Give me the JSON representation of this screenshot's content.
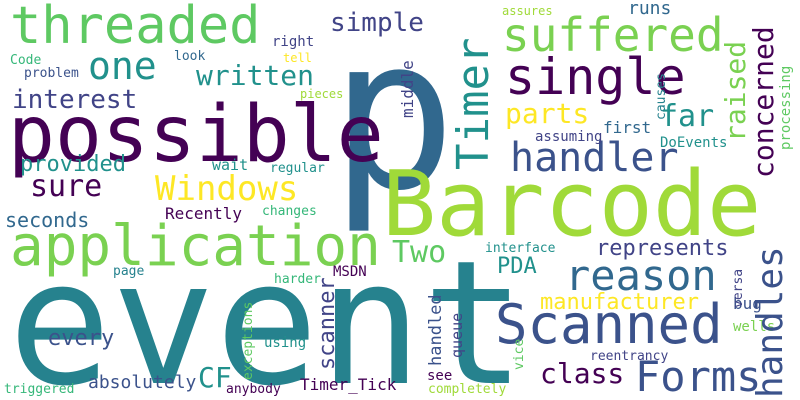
{
  "palette": {
    "dark_purple": "#440154",
    "indigo": "#3b528b",
    "deep_indigo": "#414487",
    "blue": "#31688e",
    "teal": "#21918c",
    "teal_blue": "#26828e",
    "green": "#35b779",
    "light_green": "#5ec962",
    "lime": "#7ad151",
    "yellow_green": "#a0da39",
    "yellow": "#fde725"
  },
  "words": {
    "p": "p",
    "event": "event",
    "barcode": "Barcode",
    "possible": "possible",
    "application": "application",
    "threaded": "threaded",
    "single": "single",
    "scanned": "Scanned",
    "timer": "Timer",
    "suffered": "suffered",
    "handler": "handler",
    "reason": "reason",
    "forms": "Forms",
    "windows": "Windows",
    "one": "one",
    "handles": "handles",
    "written": "written",
    "interest": "interest",
    "sure": "sure",
    "concerned": "concerned",
    "raised": "raised",
    "simple": "simple",
    "parts": "parts",
    "far": "far",
    "two": "Two",
    "class": "class",
    "scanner": "scanner",
    "provided": "provided",
    "represents": "represents",
    "manufacturer": "manufacturer",
    "every": "every",
    "seconds": "seconds",
    "pda": "PDA",
    "handled": "handled",
    "cf": "CF",
    "absolutely": "absolutely",
    "queue": "queue",
    "recently": "Recently",
    "bug": "bug",
    "wells": "wells",
    "timer_tick": "Timer_Tick",
    "runs": "runs",
    "first": "first",
    "doevents": "DoEvents",
    "assuming": "assuming",
    "processing": "processing",
    "middle": "middle",
    "right": "right",
    "tell": "tell",
    "look": "look",
    "code": "Code",
    "problem": "problem",
    "pieces": "pieces",
    "wait": "wait",
    "regular": "regular",
    "changes": "changes",
    "interface": "interface",
    "msdn": "MSDN",
    "harder": "harder",
    "page": "page",
    "using": "using",
    "exceptions": "exceptions",
    "see": "see",
    "completely": "completely",
    "anybody": "anybody",
    "triggered": "triggered",
    "vice": "vice",
    "versa": "versa",
    "reentrancy": "reentrancy",
    "assures": "assures",
    "causes": "causes"
  }
}
